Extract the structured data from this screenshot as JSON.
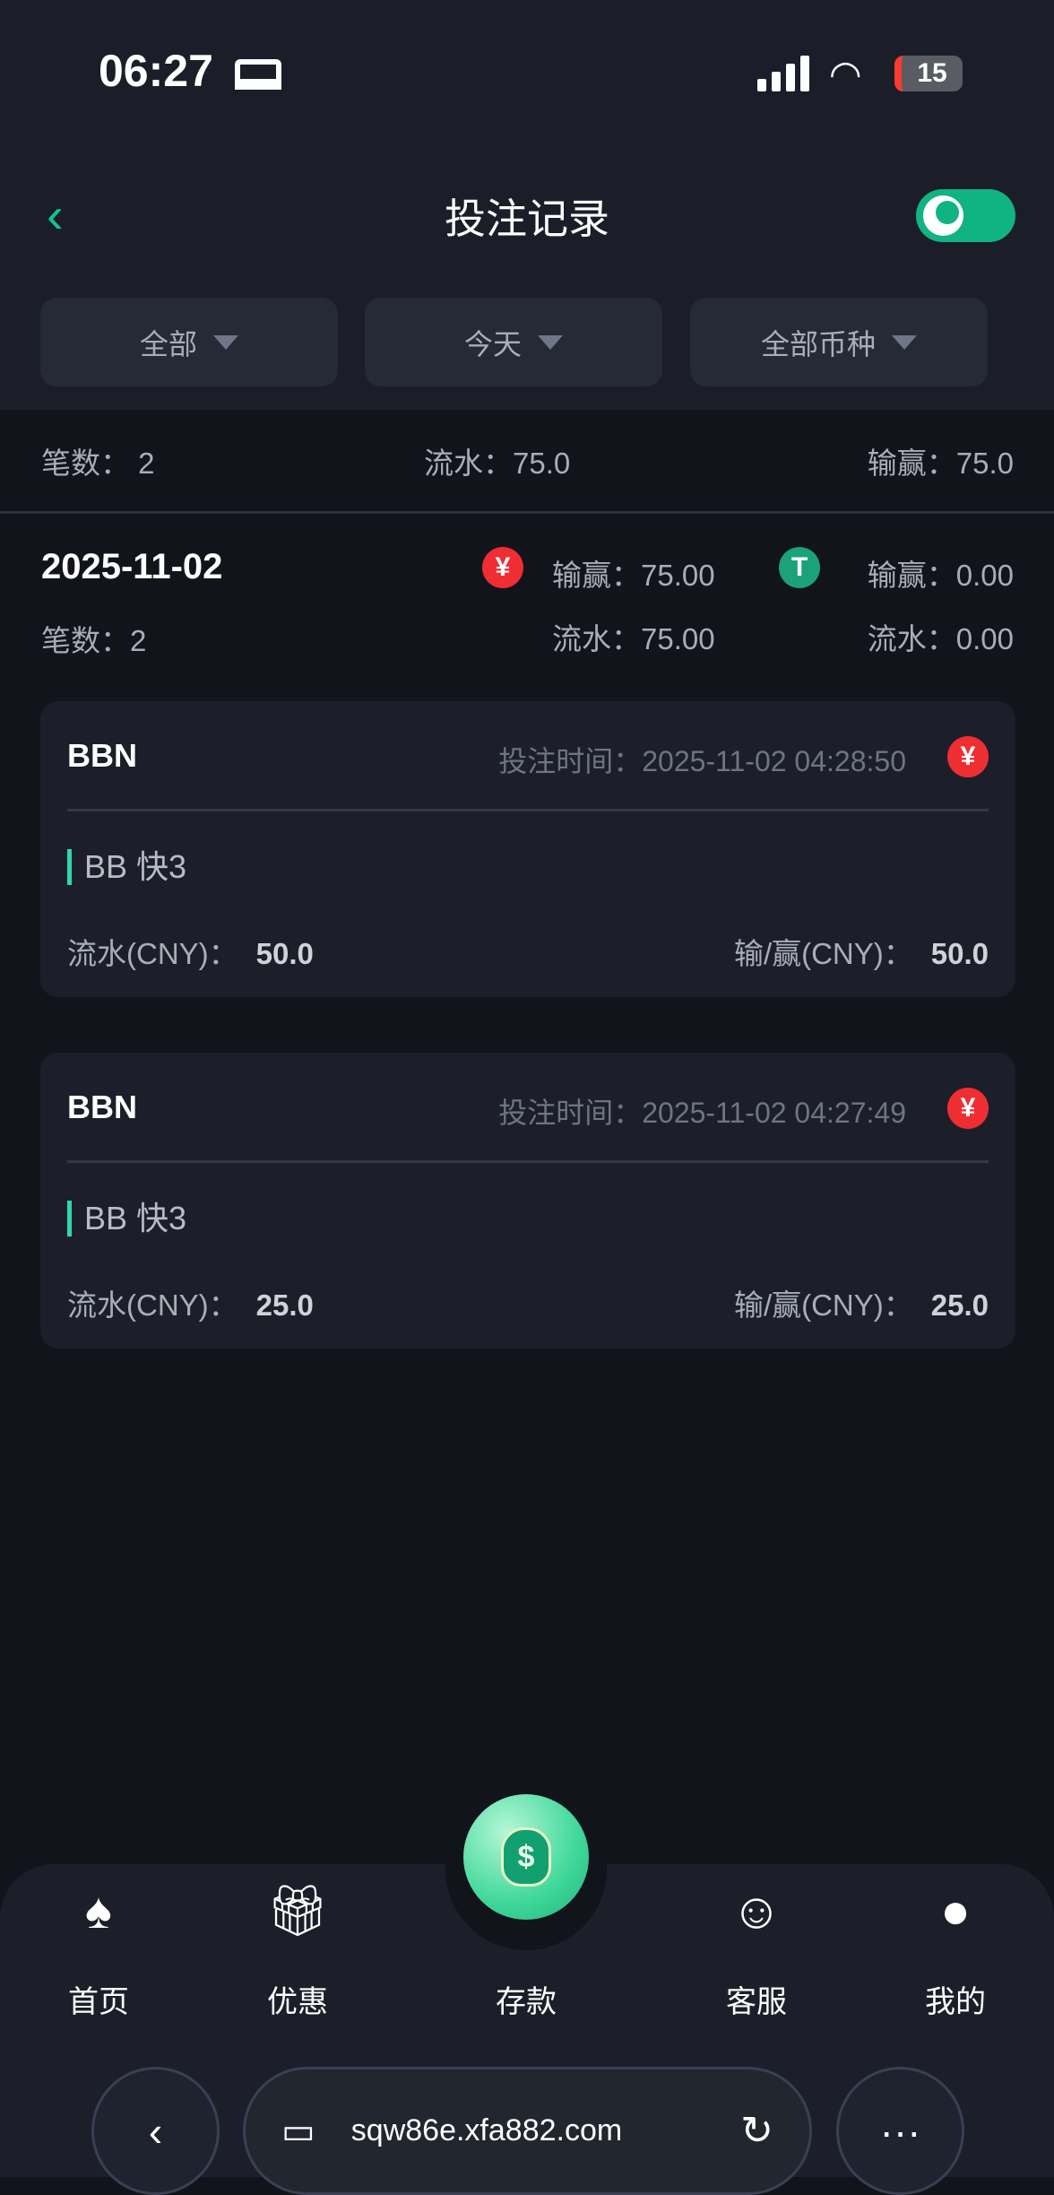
{
  "status": {
    "time": "06:27",
    "battery": "15"
  },
  "header": {
    "title": "投注记录"
  },
  "filters": [
    "全部",
    "今天",
    "全部币种"
  ],
  "summary": {
    "count_label": "笔数：",
    "count": "2",
    "turnover_label": "流水：",
    "turnover": "75.0",
    "winloss_label": "输赢：",
    "winloss": "75.0"
  },
  "day": {
    "date": "2025-11-02",
    "count_label": "笔数：",
    "count": "2",
    "cny": {
      "icon": "¥",
      "winloss": "输赢：75.00",
      "turnover": "流水：75.00"
    },
    "usdt": {
      "icon": "T",
      "winloss": "输赢：0.00",
      "turnover": "流水：0.00"
    }
  },
  "records": [
    {
      "platform": "BBN",
      "time": "投注时间：2025-11-02 04:28:50",
      "currency_icon": "¥",
      "game": "BB 快3",
      "turnover_label": "流水(CNY)：",
      "turnover": "50.0",
      "winloss_label": "输/赢(CNY)：",
      "winloss": "50.0"
    },
    {
      "platform": "BBN",
      "time": "投注时间：2025-11-02 04:27:49",
      "currency_icon": "¥",
      "game": "BB 快3",
      "turnover_label": "流水(CNY)：",
      "turnover": "25.0",
      "winloss_label": "输/赢(CNY)：",
      "winloss": "25.0"
    }
  ],
  "nav": [
    {
      "label": "首页",
      "icon": "spade-8-icon"
    },
    {
      "label": "优惠",
      "icon": "gift-hand-icon"
    },
    {
      "label": "存款",
      "icon": "money-bag-icon"
    },
    {
      "label": "客服",
      "icon": "support-agent-icon"
    },
    {
      "label": "我的",
      "icon": "user-icon"
    }
  ],
  "browser": {
    "url": "sqw86e.xfa882.com"
  },
  "colors": {
    "accent": "#10b482",
    "cny": "#ef2e34",
    "usdt": "#1ba27a"
  }
}
